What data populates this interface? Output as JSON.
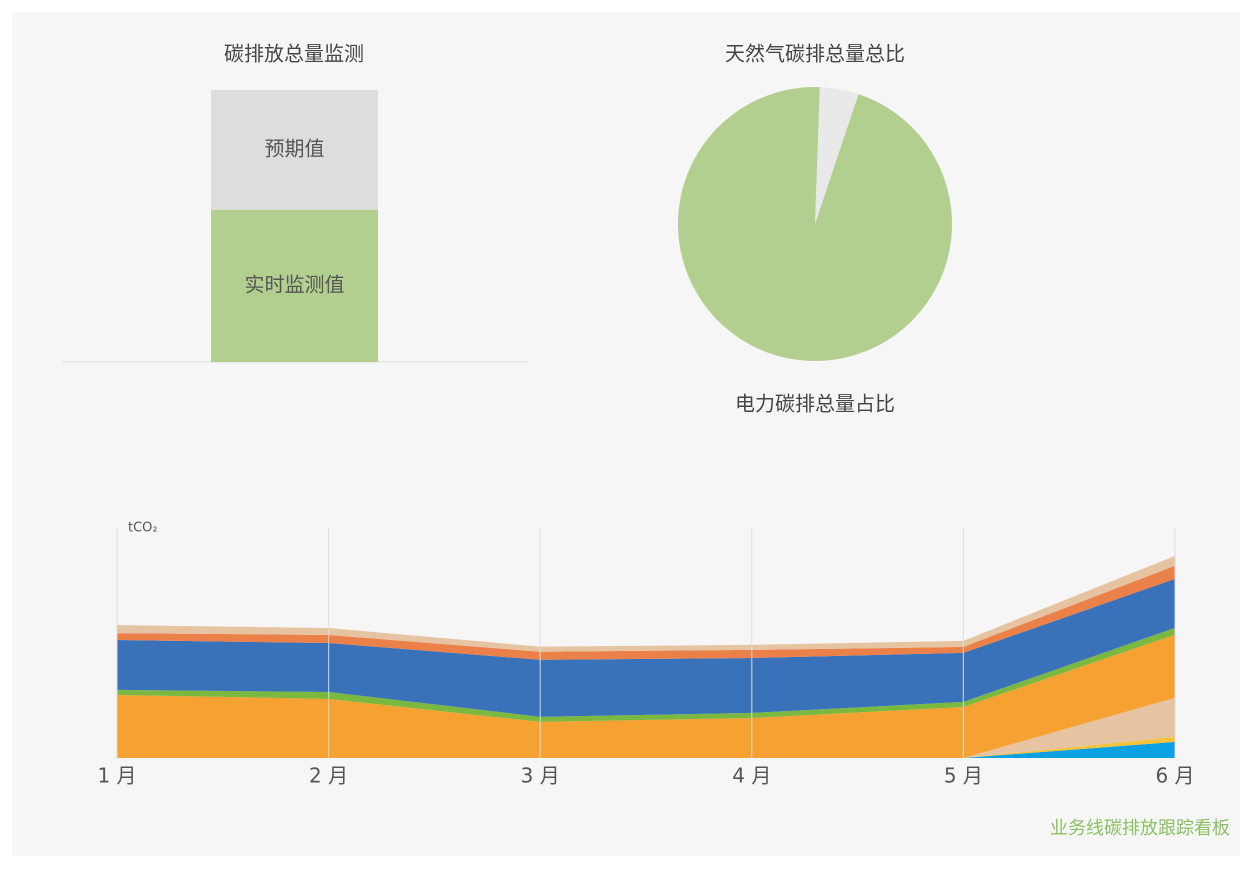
{
  "chart_data": [
    {
      "type": "stacked-bar",
      "title": "碳排放总量监测",
      "series": [
        {
          "name": "实时监测值",
          "color": "#b3cf8f",
          "values": [
            56
          ]
        },
        {
          "name": "预期值",
          "color": "#dcdddc",
          "values": [
            44
          ]
        }
      ],
      "ylim": [
        0,
        100
      ]
    },
    {
      "type": "pie",
      "categories": [
        "天然气碳排总量总比",
        "电力碳排总量占比"
      ],
      "values": [
        4.6,
        95.4
      ],
      "colors": [
        "#e8e9e8",
        "#b3cf8f"
      ],
      "start_angle": 2
    },
    {
      "type": "stacked-area",
      "y_label": "tCO₂",
      "categories": [
        "1 月",
        "2 月",
        "3 月",
        "4 月",
        "5 月",
        "6 月"
      ],
      "ylim": [
        0,
        100
      ],
      "grid": true,
      "series": [
        {
          "color": "#0aa0e2",
          "values": [
            0,
            0,
            0,
            0,
            0,
            7.0
          ]
        },
        {
          "color": "#f5c33b",
          "values": [
            0,
            0,
            0,
            0,
            0,
            2.2
          ]
        },
        {
          "color": "#e6c4a2",
          "values": [
            0,
            0,
            0,
            0,
            0,
            17.0
          ]
        },
        {
          "color": "#f5a233",
          "values": [
            27.4,
            25.7,
            15.7,
            17.4,
            22.2,
            27.4
          ]
        },
        {
          "color": "#7ab840",
          "values": [
            2.2,
            3.0,
            2.2,
            2.2,
            2.2,
            3.0
          ]
        },
        {
          "color": "#3a72b9",
          "values": [
            21.7,
            21.3,
            24.8,
            23.9,
            21.3,
            21.3
          ]
        },
        {
          "color": "#ec8049",
          "values": [
            3.0,
            3.5,
            3.5,
            3.5,
            2.6,
            5.7
          ]
        },
        {
          "color": "#e6c4a2",
          "values": [
            3.5,
            3.0,
            2.2,
            2.2,
            2.6,
            4.3
          ]
        }
      ]
    }
  ],
  "footer": "业务线碳排放跟踪看板"
}
